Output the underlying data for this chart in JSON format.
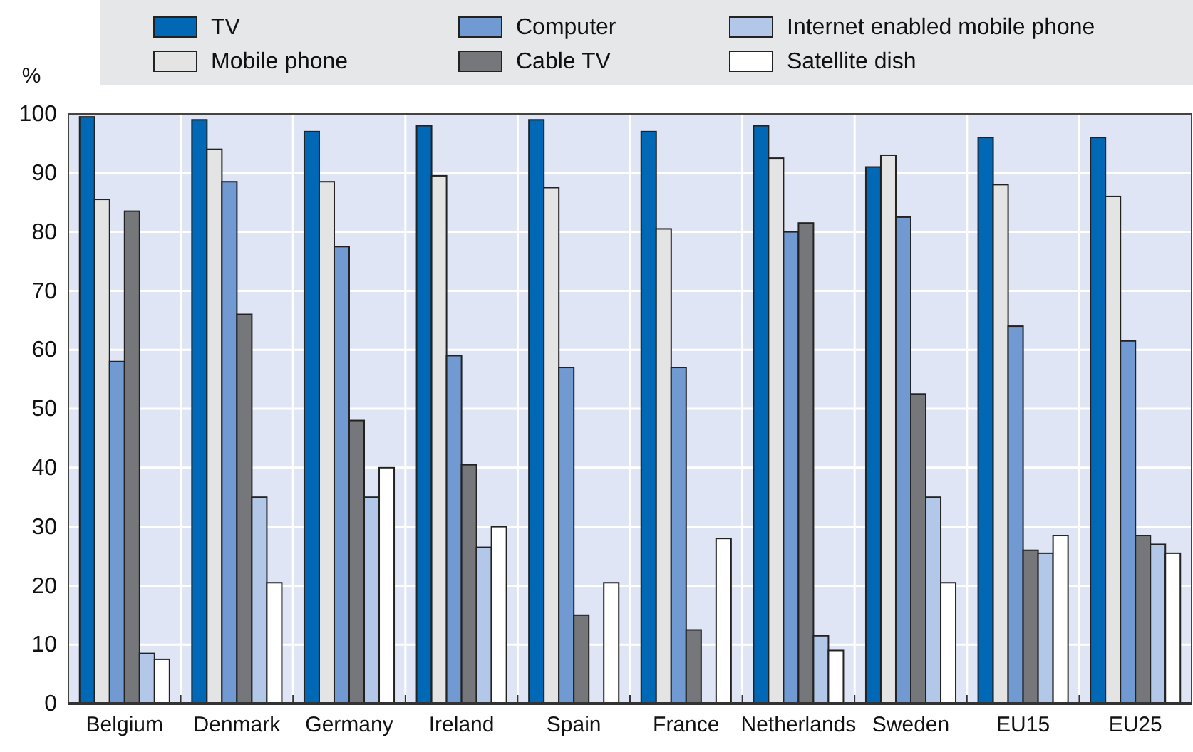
{
  "chart_data": {
    "type": "bar",
    "ylabel": "%",
    "categories": [
      "Belgium",
      "Denmark",
      "Germany",
      "Ireland",
      "Spain",
      "France",
      "Netherlands",
      "Sweden",
      "EU15",
      "EU25"
    ],
    "series": [
      {
        "name": "TV",
        "color": "#0068b5",
        "values": [
          99.5,
          99,
          97,
          98,
          99,
          97,
          98,
          91,
          96,
          96
        ]
      },
      {
        "name": "Mobile phone",
        "color": "#e4e4e4",
        "values": [
          85.5,
          94,
          88.5,
          89.5,
          87.5,
          80.5,
          92.5,
          93,
          88,
          86
        ]
      },
      {
        "name": "Computer",
        "color": "#7199d2",
        "values": [
          58,
          88.5,
          77.5,
          59,
          57,
          57,
          80,
          82.5,
          64,
          61.5
        ]
      },
      {
        "name": "Cable TV",
        "color": "#76777a",
        "values": [
          83.5,
          66,
          48,
          40.5,
          15,
          12.5,
          81.5,
          52.5,
          26,
          28.5
        ]
      },
      {
        "name": "Internet enabled mobile phone",
        "color": "#b3c8e8",
        "values": [
          8.5,
          35,
          35,
          26.5,
          0,
          0,
          11.5,
          35,
          25.5,
          27
        ]
      },
      {
        "name": "Satellite dish",
        "color": "#ffffff",
        "values": [
          7.5,
          20.5,
          40,
          30,
          20.5,
          28,
          9,
          20.5,
          28.5,
          25.5
        ]
      }
    ],
    "ylim": [
      0,
      100
    ],
    "yticks": [
      0,
      10,
      20,
      30,
      40,
      50,
      60,
      70,
      80,
      90,
      100
    ],
    "grid": true,
    "legend": "top"
  }
}
